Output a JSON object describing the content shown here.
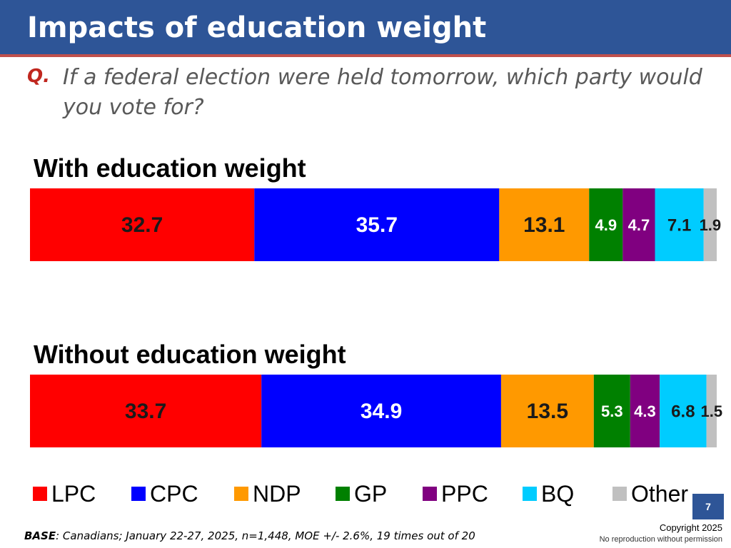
{
  "slide": {
    "title": "Impacts of education weight",
    "question_label": "Q.",
    "question": "If a federal election were held tomorrow, which party would you vote for?",
    "page_number": "7",
    "base_label": "BASE",
    "base_text": ": Canadians; January 22-27, 2025, n=1,448, MOE +/- 2.6%, 19 times out of 20",
    "copyright": "Copyright 2025",
    "no_reproduction": "No reproduction without permission"
  },
  "chart_data": {
    "type": "bar",
    "orientation": "horizontal-stacked-100",
    "categories": [
      "With education weight",
      "Without education weight"
    ],
    "series": [
      {
        "name": "LPC",
        "color": "#ff0000",
        "label_color": "#1a1a1a",
        "values": [
          32.7,
          33.7
        ]
      },
      {
        "name": "CPC",
        "color": "#0000ff",
        "label_color": "#ffffff",
        "values": [
          35.7,
          34.9
        ]
      },
      {
        "name": "NDP",
        "color": "#ff9900",
        "label_color": "#1a1a1a",
        "values": [
          13.1,
          13.5
        ]
      },
      {
        "name": "GP",
        "color": "#008000",
        "label_color": "#ffffff",
        "values": [
          4.9,
          5.3
        ]
      },
      {
        "name": "PPC",
        "color": "#800080",
        "label_color": "#ffffff",
        "values": [
          4.7,
          4.3
        ]
      },
      {
        "name": "BQ",
        "color": "#00ccff",
        "label_color": "#1a1a1a",
        "values": [
          7.1,
          6.8
        ]
      },
      {
        "name": "Other",
        "color": "#c0c0c0",
        "label_color": "#1a1a1a",
        "values": [
          1.9,
          1.5
        ]
      }
    ],
    "legend_position": "bottom"
  }
}
